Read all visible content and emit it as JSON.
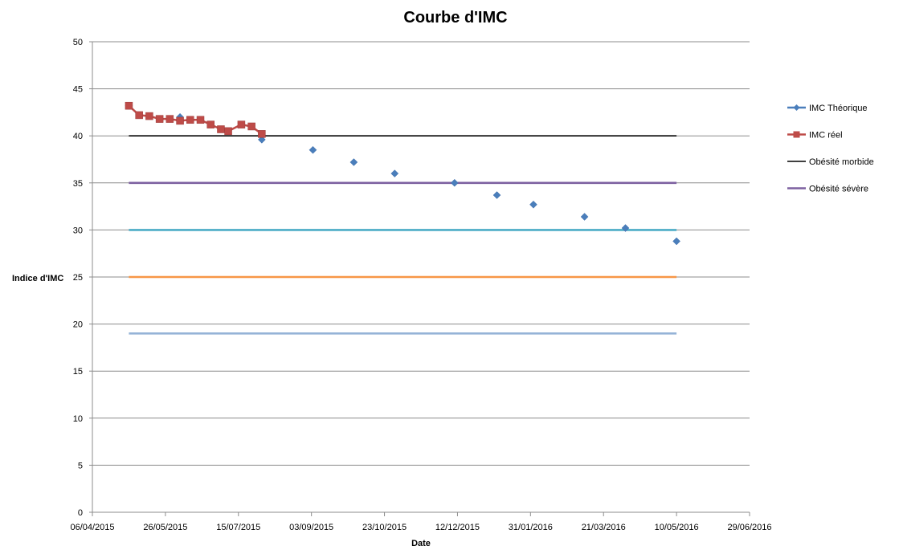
{
  "chart_data": {
    "type": "line",
    "title": "Courbe d'IMC",
    "xlabel": "Date",
    "ylabel": "Indice d'IMC",
    "x_axis": {
      "kind": "date",
      "min": "2015-04-06",
      "max": "2016-06-29",
      "tick_labels": [
        "06/04/2015",
        "26/05/2015",
        "15/07/2015",
        "03/09/2015",
        "23/10/2015",
        "12/12/2015",
        "31/01/2016",
        "21/03/2016",
        "10/05/2016",
        "29/06/2016"
      ]
    },
    "y_axis": {
      "min": 0,
      "max": 50,
      "tick_labels": [
        "0",
        "5",
        "10",
        "15",
        "20",
        "25",
        "30",
        "35",
        "40",
        "45",
        "50"
      ]
    },
    "grid": "horizontal",
    "legend_position": "right",
    "series": [
      {
        "name": "IMC Théorique",
        "color": "#4a7ebb",
        "marker": "diamond",
        "line": false,
        "points": [
          {
            "x": "2015-05-01",
            "y": 43.2
          },
          {
            "x": "2015-06-05",
            "y": 42.0
          },
          {
            "x": "2015-07-31",
            "y": 39.6
          },
          {
            "x": "2015-09-04",
            "y": 38.5
          },
          {
            "x": "2015-10-02",
            "y": 37.2
          },
          {
            "x": "2015-10-30",
            "y": 36.0
          },
          {
            "x": "2015-12-10",
            "y": 35.0
          },
          {
            "x": "2016-01-08",
            "y": 33.7
          },
          {
            "x": "2016-02-02",
            "y": 32.7
          },
          {
            "x": "2016-03-08",
            "y": 31.4
          },
          {
            "x": "2016-04-05",
            "y": 30.2
          },
          {
            "x": "2016-05-10",
            "y": 28.8
          }
        ]
      },
      {
        "name": "IMC réel",
        "color": "#be4b48",
        "marker": "square",
        "line": true,
        "points": [
          {
            "x": "2015-05-01",
            "y": 43.2
          },
          {
            "x": "2015-05-08",
            "y": 42.2
          },
          {
            "x": "2015-05-15",
            "y": 42.1
          },
          {
            "x": "2015-05-22",
            "y": 41.8
          },
          {
            "x": "2015-05-29",
            "y": 41.8
          },
          {
            "x": "2015-06-05",
            "y": 41.6
          },
          {
            "x": "2015-06-12",
            "y": 41.7
          },
          {
            "x": "2015-06-19",
            "y": 41.7
          },
          {
            "x": "2015-06-26",
            "y": 41.2
          },
          {
            "x": "2015-07-03",
            "y": 40.7
          },
          {
            "x": "2015-07-08",
            "y": 40.5
          },
          {
            "x": "2015-07-17",
            "y": 41.2
          },
          {
            "x": "2015-07-24",
            "y": 41.0
          },
          {
            "x": "2015-07-31",
            "y": 40.2
          }
        ]
      },
      {
        "name": "Obésité morbide",
        "color": "#000000",
        "marker": "none",
        "line": true,
        "points": [
          {
            "x": "2015-05-01",
            "y": 40
          },
          {
            "x": "2016-05-10",
            "y": 40
          }
        ]
      },
      {
        "name": "Obésité sévère",
        "color": "#7d60a0",
        "marker": "none",
        "line": true,
        "points": [
          {
            "x": "2015-05-01",
            "y": 35
          },
          {
            "x": "2016-05-10",
            "y": 35
          }
        ]
      },
      {
        "color": "#4bacc6",
        "marker": "none",
        "line": true,
        "points": [
          {
            "x": "2015-05-01",
            "y": 30
          },
          {
            "x": "2016-05-10",
            "y": 30
          }
        ]
      },
      {
        "color": "#f79646",
        "marker": "none",
        "line": true,
        "points": [
          {
            "x": "2015-05-01",
            "y": 25
          },
          {
            "x": "2016-05-10",
            "y": 25
          }
        ]
      },
      {
        "color": "#95b3d7",
        "marker": "none",
        "line": true,
        "points": [
          {
            "x": "2015-05-01",
            "y": 19
          },
          {
            "x": "2016-05-10",
            "y": 19
          }
        ]
      }
    ]
  }
}
